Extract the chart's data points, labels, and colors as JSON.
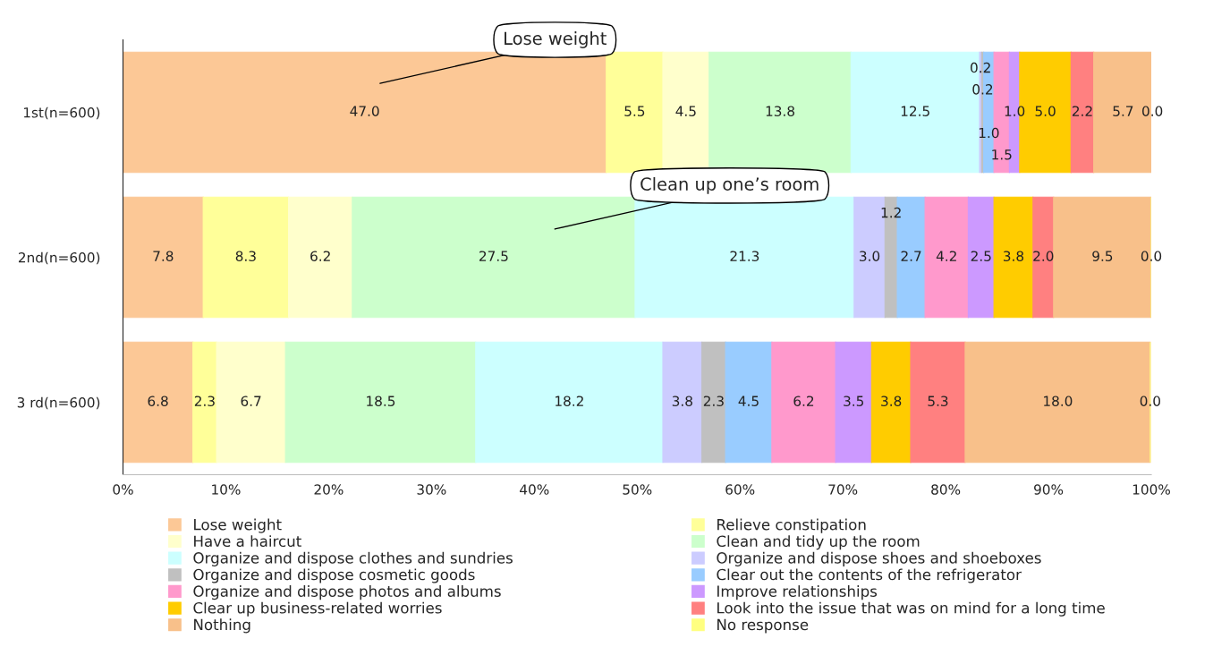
{
  "chart_data": {
    "type": "bar",
    "orientation": "horizontal",
    "stacked": true,
    "categories": [
      "1st(n=600)",
      "2nd(n=600)",
      "3 rd(n=600)"
    ],
    "series": [
      {
        "name": "Lose weight",
        "color": "#fcc896",
        "values": [
          47.0,
          7.8,
          6.8
        ],
        "value_labels": [
          "47.0",
          "7.8",
          "6.8"
        ]
      },
      {
        "name": "Relieve constipation",
        "color": "#ffff99",
        "values": [
          5.5,
          8.3,
          2.3
        ],
        "value_labels": [
          "5.5",
          "8.3",
          "2.3"
        ]
      },
      {
        "name": "Have a haircut",
        "color": "#ffffcc",
        "values": [
          4.5,
          6.2,
          6.7
        ],
        "value_labels": [
          "4.5",
          "6.2",
          "6.7"
        ]
      },
      {
        "name": "Clean and tidy up the room",
        "color": "#ccffcc",
        "values": [
          13.8,
          27.5,
          18.5
        ],
        "value_labels": [
          "13.8",
          "27.5",
          "18.5"
        ]
      },
      {
        "name": "Organize and dispose clothes and sundries",
        "color": "#ccffff",
        "values": [
          12.5,
          21.3,
          18.2
        ],
        "value_labels": [
          "12.5",
          "21.3",
          "18.2"
        ]
      },
      {
        "name": "Organize and dispose shoes and shoeboxes",
        "color": "#ccccff",
        "values": [
          0.2,
          3.0,
          3.8
        ],
        "value_labels": [
          "0.2",
          "3.0",
          "3.8"
        ]
      },
      {
        "name": "Organize and dispose cosmetic goods",
        "color": "#c0c0c0",
        "values": [
          0.2,
          1.2,
          2.3
        ],
        "value_labels": [
          "0.2",
          "1.2",
          "2.3"
        ]
      },
      {
        "name": "Clear out the contents of the refrigerator",
        "color": "#99ccff",
        "values": [
          1.0,
          2.7,
          4.5
        ],
        "value_labels": [
          "1.0",
          "2.7",
          "4.5"
        ]
      },
      {
        "name": "Organize and dispose photos and albums",
        "color": "#ff99cc",
        "values": [
          1.5,
          4.2,
          6.2
        ],
        "value_labels": [
          "1.5",
          "4.2",
          "6.2"
        ]
      },
      {
        "name": "Improve relationships",
        "color": "#cc99ff",
        "values": [
          1.0,
          2.5,
          3.5
        ],
        "value_labels": [
          "1.0",
          "2.5",
          "3.5"
        ]
      },
      {
        "name": "Clear up business-related worries",
        "color": "#ffcc00",
        "values": [
          5.0,
          3.8,
          3.8
        ],
        "value_labels": [
          "5.0",
          "3.8",
          "3.8"
        ]
      },
      {
        "name": "Look into the issue that was on mind for a long time",
        "color": "#ff8080",
        "values": [
          2.2,
          2.0,
          5.3
        ],
        "value_labels": [
          "2.2",
          "2.0",
          "5.3"
        ]
      },
      {
        "name": "Nothing",
        "color": "#f8c08a",
        "values": [
          5.7,
          9.5,
          18.0
        ],
        "value_labels": [
          "5.7",
          "9.5",
          "18.0"
        ]
      },
      {
        "name": "No response",
        "color": "#ffff80",
        "values": [
          0.0,
          0.0,
          0.0
        ],
        "value_labels": [
          "0.0",
          "0.0",
          "0.0"
        ]
      }
    ],
    "xlim": [
      0,
      100
    ],
    "xticks": [
      {
        "value": 0,
        "label": "0%"
      },
      {
        "value": 10,
        "label": "10%"
      },
      {
        "value": 20,
        "label": "20%"
      },
      {
        "value": 30,
        "label": "30%"
      },
      {
        "value": 40,
        "label": "40%"
      },
      {
        "value": 50,
        "label": "50%"
      },
      {
        "value": 60,
        "label": "60%"
      },
      {
        "value": 70,
        "label": "70%"
      },
      {
        "value": 80,
        "label": "80%"
      },
      {
        "value": 90,
        "label": "90%"
      },
      {
        "value": 100,
        "label": "100%"
      }
    ],
    "grid": false,
    "legend": "bottom",
    "annotations": [
      "Lose weight",
      "Clean up one’s room"
    ]
  }
}
